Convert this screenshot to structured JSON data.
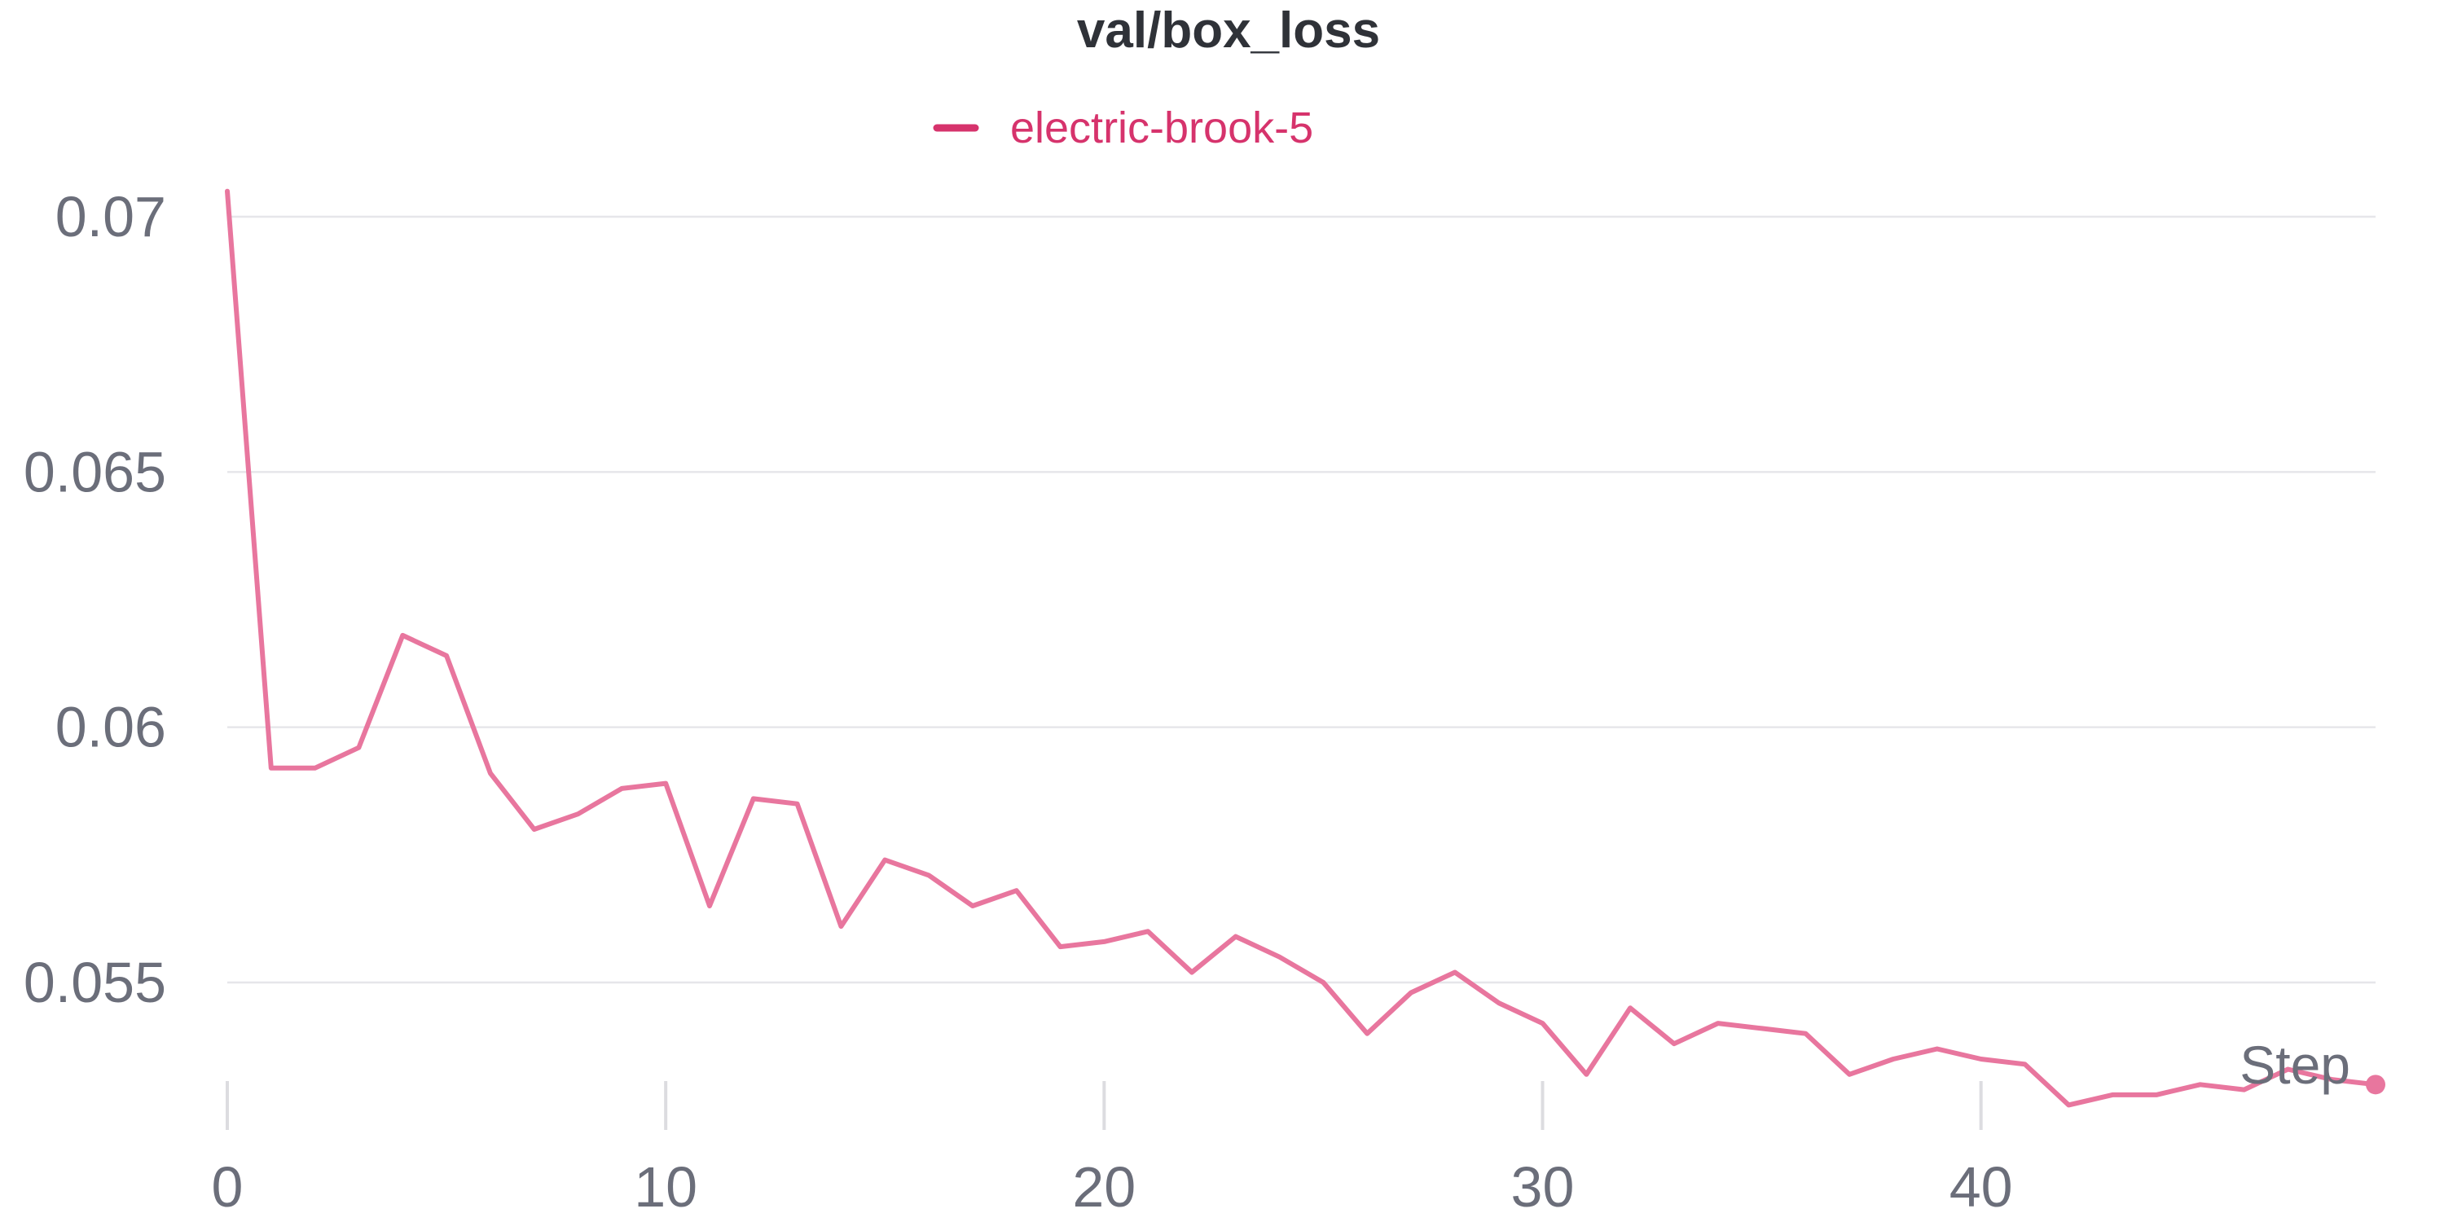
{
  "chart_data": {
    "type": "line",
    "title": "val/box_loss",
    "xlabel": "Step",
    "ylabel": "",
    "xlim": [
      0,
      49
    ],
    "ylim": [
      0.053,
      0.0705
    ],
    "x_ticks": [
      0,
      10,
      20,
      30,
      40
    ],
    "x_tick_labels": [
      "0",
      "10",
      "20",
      "30",
      "40"
    ],
    "y_ticks": [
      0.055,
      0.06,
      0.065,
      0.07
    ],
    "y_tick_labels": [
      "0.055",
      "0.06",
      "0.065",
      "0.07"
    ],
    "grid": "horizontal",
    "legend_position": "top-center",
    "series": [
      {
        "name": "electric-brook-5",
        "color": "#e8769e",
        "legend_color": "#d6336c",
        "x": [
          0,
          1,
          2,
          3,
          4,
          5,
          6,
          7,
          8,
          9,
          10,
          11,
          12,
          13,
          14,
          15,
          16,
          17,
          18,
          19,
          20,
          21,
          22,
          23,
          24,
          25,
          26,
          27,
          28,
          29,
          30,
          31,
          32,
          33,
          34,
          35,
          36,
          37,
          38,
          39,
          40,
          41,
          42,
          43,
          44,
          45,
          46,
          47,
          48,
          49
        ],
        "values": [
          0.0705,
          0.0592,
          0.0592,
          0.0596,
          0.0618,
          0.0614,
          0.0591,
          0.058,
          0.0583,
          0.0588,
          0.0589,
          0.0565,
          0.0586,
          0.0585,
          0.0561,
          0.0574,
          0.0571,
          0.0565,
          0.0568,
          0.0557,
          0.0558,
          0.056,
          0.0552,
          0.0559,
          0.0555,
          0.055,
          0.054,
          0.0548,
          0.0552,
          0.0546,
          0.0542,
          0.0532,
          0.0545,
          0.0538,
          0.0542,
          0.0541,
          0.054,
          0.0532,
          0.0535,
          0.0537,
          0.0535,
          0.0534,
          0.0526,
          0.0528,
          0.0528,
          0.053,
          0.0529,
          0.0533,
          0.0531,
          0.053
        ]
      }
    ]
  }
}
